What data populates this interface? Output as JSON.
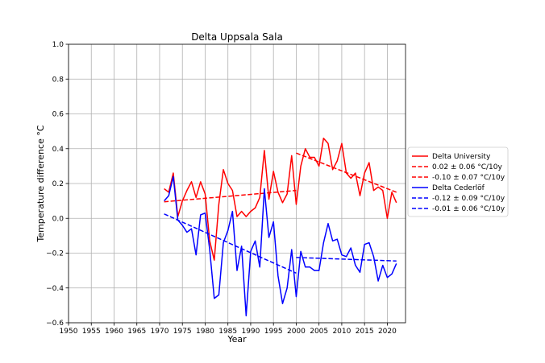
{
  "chart_data": {
    "type": "line",
    "title": "Delta Uppsala Sala",
    "xlabel": "Year",
    "ylabel": "Temperature difference °C",
    "xlim": [
      1950,
      2024
    ],
    "ylim": [
      -0.6,
      1.0
    ],
    "xticks": [
      "1950",
      "1955",
      "1960",
      "1965",
      "1970",
      "1975",
      "1980",
      "1985",
      "1990",
      "1995",
      "2000",
      "2005",
      "2010",
      "2015",
      "2020"
    ],
    "yticks": [
      "−0.6",
      "−0.4",
      "−0.2",
      "0.0",
      "0.2",
      "0.4",
      "0.6",
      "0.8",
      "1.0"
    ],
    "grid": true,
    "legend_position": "right",
    "series": [
      {
        "name": "Delta University",
        "style": "solid",
        "color": "#ff0000",
        "x": [
          1971,
          1972,
          1973,
          1974,
          1975,
          1976,
          1977,
          1978,
          1979,
          1980,
          1981,
          1982,
          1983,
          1984,
          1985,
          1986,
          1987,
          1988,
          1989,
          1990,
          1991,
          1992,
          1993,
          1994,
          1995,
          1996,
          1997,
          1998,
          1999,
          2000,
          2001,
          2002,
          2003,
          2004,
          2005,
          2006,
          2007,
          2008,
          2009,
          2010,
          2011,
          2012,
          2013,
          2014,
          2015,
          2016,
          2017,
          2018,
          2019,
          2020,
          2021,
          2022
        ],
        "y": [
          0.17,
          0.15,
          0.26,
          0.01,
          0.1,
          0.16,
          0.21,
          0.12,
          0.21,
          0.14,
          -0.13,
          -0.24,
          0.08,
          0.28,
          0.2,
          0.16,
          0.01,
          0.04,
          0.01,
          0.04,
          0.06,
          0.12,
          0.39,
          0.11,
          0.27,
          0.15,
          0.09,
          0.14,
          0.36,
          0.08,
          0.3,
          0.4,
          0.35,
          0.35,
          0.3,
          0.46,
          0.43,
          0.28,
          0.33,
          0.43,
          0.26,
          0.23,
          0.26,
          0.13,
          0.26,
          0.32,
          0.16,
          0.18,
          0.16,
          0.0,
          0.15,
          0.09
        ]
      },
      {
        "name": "0.02 ± 0.06 °C/10y",
        "style": "dashed",
        "color": "#ff0000",
        "x": [
          1971,
          2000
        ],
        "y": [
          0.095,
          0.16
        ]
      },
      {
        "name": "-0.10 ± 0.07 °C/10y",
        "style": "dashed",
        "color": "#ff0000",
        "x": [
          2000,
          2022
        ],
        "y": [
          0.375,
          0.15
        ]
      },
      {
        "name": "Delta Cederlöf",
        "style": "solid",
        "color": "#0000ff",
        "x": [
          1971,
          1972,
          1973,
          1974,
          1975,
          1976,
          1977,
          1978,
          1979,
          1980,
          1981,
          1982,
          1983,
          1984,
          1985,
          1986,
          1987,
          1988,
          1989,
          1990,
          1991,
          1992,
          1993,
          1994,
          1995,
          1996,
          1997,
          1998,
          1999,
          2000,
          2001,
          2002,
          2003,
          2004,
          2005,
          2006,
          2007,
          2008,
          2009,
          2010,
          2011,
          2012,
          2013,
          2014,
          2015,
          2016,
          2017,
          2018,
          2019,
          2020,
          2021,
          2022
        ],
        "y": [
          0.1,
          0.13,
          0.24,
          -0.01,
          -0.04,
          -0.08,
          -0.06,
          -0.21,
          0.02,
          0.03,
          -0.18,
          -0.46,
          -0.44,
          -0.14,
          -0.07,
          0.04,
          -0.3,
          -0.16,
          -0.56,
          -0.19,
          -0.13,
          -0.28,
          0.17,
          -0.11,
          -0.02,
          -0.33,
          -0.49,
          -0.4,
          -0.18,
          -0.45,
          -0.19,
          -0.28,
          -0.28,
          -0.3,
          -0.3,
          -0.14,
          -0.03,
          -0.13,
          -0.12,
          -0.21,
          -0.22,
          -0.17,
          -0.27,
          -0.31,
          -0.15,
          -0.14,
          -0.22,
          -0.36,
          -0.27,
          -0.34,
          -0.32,
          -0.26
        ]
      },
      {
        "name": "-0.12 ± 0.09 °C/10y",
        "style": "dashed",
        "color": "#0000ff",
        "x": [
          1971,
          2000
        ],
        "y": [
          0.025,
          -0.315
        ]
      },
      {
        "name": "-0.01 ± 0.06 °C/10y",
        "style": "dashed",
        "color": "#0000ff",
        "x": [
          2000,
          2022
        ],
        "y": [
          -0.225,
          -0.245
        ]
      }
    ]
  }
}
